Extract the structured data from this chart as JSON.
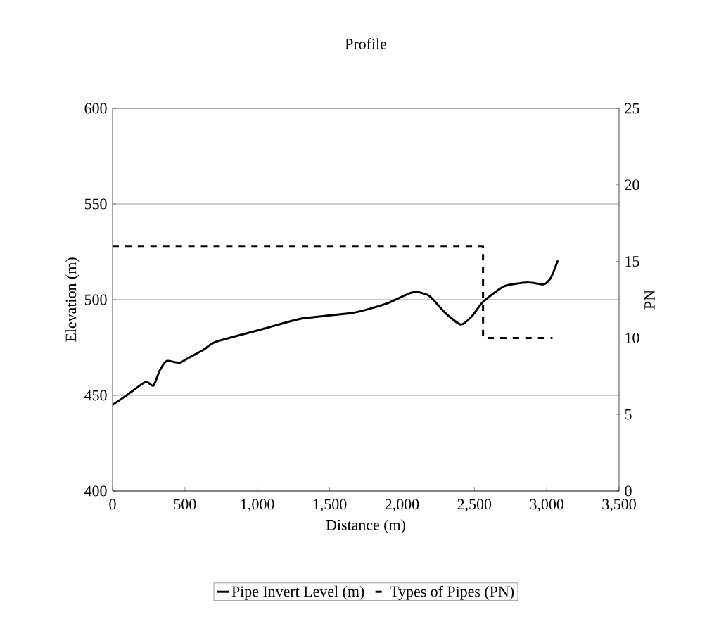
{
  "chart_data": {
    "type": "line",
    "title": "Profile",
    "xlabel": "Distance (m)",
    "ylabel": "Elevation (m)",
    "y2label": "PN",
    "xlim": [
      0,
      3500
    ],
    "xticks": [
      0,
      500,
      {
        "value": 1000,
        "label": "1,000"
      },
      {
        "value": 1500,
        "label": "1,500"
      },
      {
        "value": 2000,
        "label": "2,000"
      },
      {
        "value": 2500,
        "label": "2,500"
      },
      {
        "value": 3000,
        "label": "3,000"
      },
      {
        "value": 3500,
        "label": "3,500"
      }
    ],
    "ylim": [
      400,
      600
    ],
    "yticks": [
      400,
      450,
      500,
      550,
      600
    ],
    "y2lim": [
      0,
      25
    ],
    "y2ticks": [
      0,
      5,
      10,
      15,
      20,
      25
    ],
    "grid": "y",
    "legend": "bottom",
    "series": [
      {
        "name": "Pipe Invert Level (m)",
        "color": "#000000",
        "line_style": "solid",
        "x": [
          0,
          97,
          228,
          282,
          326,
          374,
          462,
          535,
          632,
          714,
          1055,
          1298,
          1653,
          1765,
          1896,
          2042,
          2100,
          2188,
          2300,
          2406,
          2479,
          2562,
          2707,
          2868,
          2980,
          3029,
          3077
        ],
        "values": [
          445,
          450,
          457,
          455,
          463,
          468,
          467,
          470,
          474,
          478,
          485,
          490,
          493,
          495,
          498,
          503,
          504,
          502,
          493,
          487,
          491,
          499,
          507,
          509,
          508,
          511.5,
          520.5
        ]
      },
      {
        "name": "Types of Pipes (PN)",
        "color": "#000000",
        "line_style": "dashed",
        "axis": "y2",
        "type": "line",
        "x": [
          0,
          2560,
          2560,
          3040
        ],
        "values": [
          16,
          16,
          10,
          10
        ]
      }
    ]
  }
}
